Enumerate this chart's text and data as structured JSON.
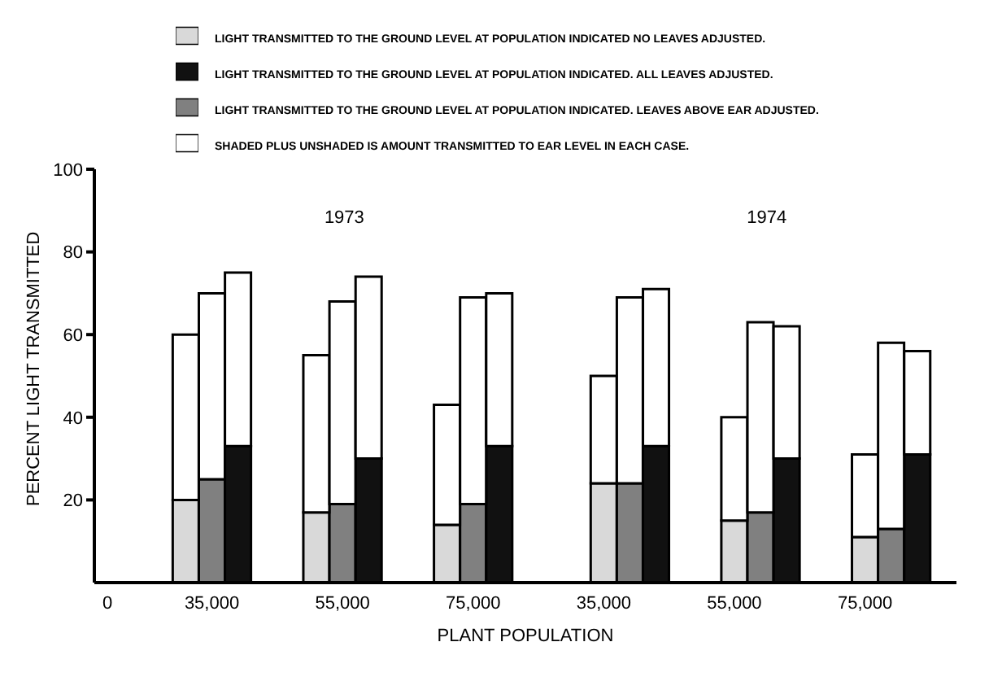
{
  "chart_data": {
    "type": "bar",
    "stacked": true,
    "xlabel": "PLANT POPULATION",
    "ylabel": "PERCENT LIGHT TRANSMITTED",
    "ylim": [
      0,
      100
    ],
    "yticks": [
      20,
      40,
      60,
      80,
      100
    ],
    "legend": "top",
    "annotations": [
      "1973",
      "1974"
    ],
    "categories": [
      "0",
      null,
      null,
      null,
      "35,000",
      null,
      null,
      null,
      null,
      "55,000",
      null,
      null,
      null,
      null,
      "75,000",
      null,
      null,
      null,
      null,
      "35,000",
      null,
      null,
      null,
      null,
      "55,000",
      null,
      null,
      null,
      null,
      "75,000",
      null,
      null,
      null
    ],
    "series": [
      {
        "name": "LIGHT TRANSMITTED TO THE GROUND LEVEL AT POPULATION INDICATED NO LEAVES ADJUSTED.",
        "color": "#d9d9d9",
        "values": [
          null,
          null,
          null,
          20,
          null,
          null,
          null,
          null,
          17,
          null,
          null,
          null,
          null,
          14,
          null,
          null,
          null,
          null,
          null,
          24,
          null,
          null,
          null,
          null,
          15,
          null,
          null,
          null,
          null,
          11,
          null,
          null,
          null
        ]
      },
      {
        "name": "LIGHT TRANSMITTED TO THE GROUND LEVEL AT POPULATION INDICATED. LEAVES ABOVE EAR ADJUSTED.",
        "color": "#808080",
        "values": [
          null,
          null,
          null,
          null,
          25,
          null,
          null,
          null,
          null,
          19,
          null,
          null,
          null,
          null,
          19,
          null,
          null,
          null,
          null,
          null,
          24,
          null,
          null,
          null,
          null,
          17,
          null,
          null,
          null,
          null,
          13,
          null,
          null
        ]
      },
      {
        "name": "LIGHT TRANSMITTED TO THE GROUND LEVEL AT POPULATION INDICATED. ALL LEAVES ADJUSTED.",
        "color": "#111111",
        "values": [
          null,
          null,
          null,
          null,
          null,
          33,
          null,
          null,
          null,
          null,
          30,
          null,
          null,
          null,
          null,
          33,
          null,
          null,
          null,
          null,
          null,
          33,
          null,
          null,
          null,
          null,
          30,
          null,
          null,
          null,
          null,
          31,
          null
        ]
      },
      {
        "name": "SHADED PLUS UNSHADED IS AMOUNT TRANSMITTED TO EAR LEVEL IN EACH CASE.",
        "color": "#ffffff",
        "values": [
          null,
          null,
          null,
          40,
          45,
          42,
          null,
          null,
          38,
          49,
          44,
          null,
          null,
          29,
          50,
          37,
          null,
          null,
          null,
          26,
          45,
          38,
          null,
          null,
          25,
          46,
          32,
          null,
          null,
          20,
          45,
          25,
          null
        ]
      }
    ]
  }
}
